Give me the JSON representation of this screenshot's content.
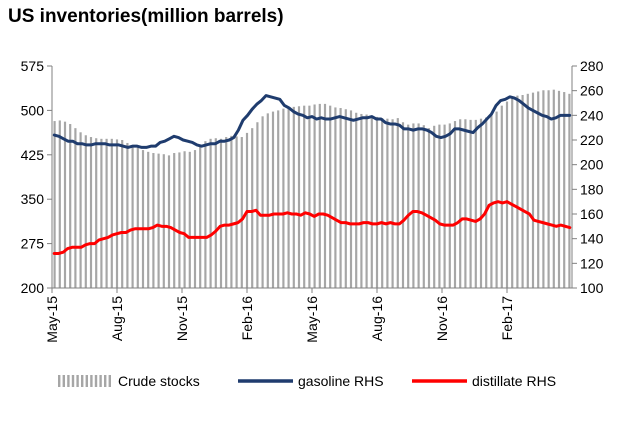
{
  "chart_data": {
    "type": "line",
    "title": "US inventories(million barrels)",
    "x_ticks": [
      "May-15",
      "Aug-15",
      "Nov-15",
      "Feb-16",
      "May-16",
      "Aug-16",
      "Nov-16",
      "Feb-17"
    ],
    "left_axis": {
      "ylim": [
        200,
        575
      ],
      "ticks": [
        200,
        275,
        350,
        425,
        500,
        575
      ]
    },
    "right_axis": {
      "ylim": [
        100,
        280
      ],
      "ticks": [
        100,
        120,
        140,
        160,
        180,
        200,
        220,
        240,
        260,
        280
      ]
    },
    "grid": false,
    "legend": "bottom",
    "x_range": [
      "2015-05",
      "2017-05"
    ],
    "series": [
      {
        "name": "Crude stocks",
        "type": "bar",
        "axis": "left",
        "color": "#a6a6a6",
        "values": [
          482,
          483,
          481,
          477,
          470,
          463,
          458,
          455,
          453,
          452,
          452,
          452,
          451,
          450,
          445,
          440,
          437,
          433,
          430,
          428,
          427,
          426,
          424,
          428,
          429,
          431,
          430,
          433,
          440,
          448,
          452,
          453,
          452,
          455,
          457,
          456,
          455,
          462,
          470,
          480,
          490,
          495,
          498,
          500,
          503,
          505,
          506,
          507,
          508,
          508,
          510,
          511,
          511,
          508,
          505,
          504,
          502,
          500,
          496,
          494,
          493,
          491,
          489,
          487,
          486,
          485,
          487,
          480,
          476,
          478,
          478,
          475,
          470,
          474,
          476,
          476,
          478,
          482,
          485,
          485,
          484,
          484,
          486,
          488,
          492,
          498,
          508,
          515,
          520,
          525,
          526,
          528,
          530,
          532,
          534,
          534,
          535,
          533,
          531,
          528
        ]
      },
      {
        "name": "gasoline RHS",
        "type": "line",
        "axis": "right",
        "color": "#1f3c6e",
        "values": [
          224,
          223,
          221,
          219,
          219,
          217,
          217,
          216,
          216,
          217,
          217,
          217,
          216,
          216,
          216,
          215,
          214,
          215,
          215,
          214,
          214,
          215,
          215,
          218,
          219,
          221,
          223,
          222,
          220,
          219,
          218,
          216,
          215,
          216,
          217,
          217,
          219,
          219,
          220,
          222,
          228,
          236,
          240,
          245,
          249,
          252,
          256,
          255,
          254,
          253,
          248,
          246,
          243,
          241,
          240,
          238,
          239,
          237,
          238,
          237,
          237,
          238,
          239,
          238,
          237,
          236,
          237,
          238,
          238,
          239,
          237,
          237,
          234,
          233,
          233,
          232,
          229,
          229,
          228,
          229,
          229,
          228,
          226,
          223,
          222,
          223,
          225,
          229,
          229,
          228,
          227,
          226,
          230,
          233,
          237,
          241,
          248,
          252,
          253,
          255,
          254,
          252,
          249,
          246,
          244,
          242,
          240,
          239,
          237,
          238,
          240,
          240,
          240
        ]
      },
      {
        "name": "distillate RHS",
        "type": "line",
        "axis": "right",
        "color": "#ff0000",
        "values": [
          128,
          128,
          129,
          132,
          133,
          133,
          133,
          135,
          136,
          136,
          139,
          140,
          141,
          143,
          144,
          145,
          145,
          147,
          148,
          148,
          148,
          148,
          149,
          151,
          150,
          150,
          149,
          147,
          145,
          144,
          141,
          141,
          141,
          141,
          141,
          143,
          146,
          150,
          151,
          151,
          152,
          153,
          156,
          162,
          162,
          163,
          159,
          159,
          159,
          160,
          160,
          160,
          161,
          160,
          160,
          159,
          161,
          160,
          158,
          160,
          160,
          159,
          157,
          155,
          153,
          153,
          152,
          152,
          152,
          153,
          153,
          152,
          152,
          153,
          152,
          153,
          152,
          152,
          155,
          159,
          162,
          162,
          161,
          159,
          157,
          155,
          152,
          151,
          151,
          151,
          153,
          156,
          156,
          155,
          154,
          156,
          160,
          167,
          169,
          170,
          169,
          170,
          168,
          166,
          164,
          162,
          160,
          155,
          154,
          153,
          152,
          151,
          150,
          151,
          150,
          149
        ]
      }
    ]
  }
}
